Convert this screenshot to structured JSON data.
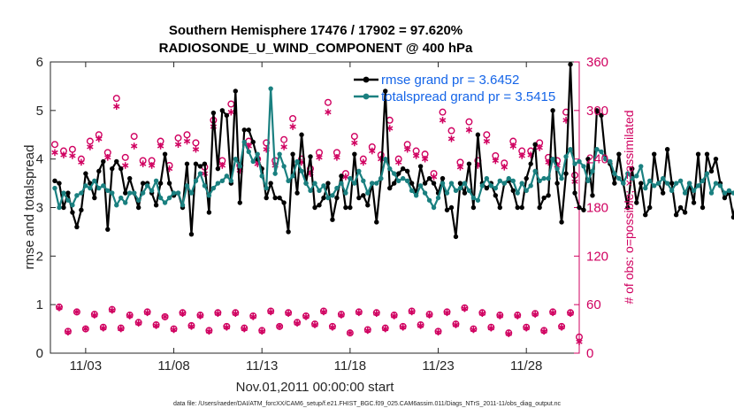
{
  "chart_data": {
    "type": "line",
    "title_line1": "Southern Hemisphere 17476 / 17902 = 97.620%",
    "title_line2": "RADIOSONDE_U_WIND_COMPONENT @ 400 hPa",
    "xlabel": "Nov.01,2011 00:00:00 start",
    "ylabel_left": "rmse and totalspread",
    "ylabel_right": "# of obs: o=possible; ×=assimilated",
    "xlim": [
      1,
      31
    ],
    "ylim_left": [
      0,
      6
    ],
    "ylim_right": [
      0,
      360
    ],
    "x_ticks": [
      3,
      8,
      13,
      18,
      23,
      28
    ],
    "x_tick_labels": [
      "11/03",
      "11/08",
      "11/13",
      "11/18",
      "11/23",
      "11/28"
    ],
    "y_left_ticks": [
      "0",
      "1",
      "2",
      "3",
      "4",
      "5",
      "6"
    ],
    "y_right_ticks": [
      "0",
      "60",
      "120",
      "180",
      "240",
      "300",
      "360"
    ],
    "x_start": 1.25,
    "x_step": 0.25,
    "series": [
      {
        "name": "rmse grand pr = 3.6452",
        "color": "#000000",
        "values": [
          3.55,
          3.5,
          3.0,
          3.3,
          2.9,
          2.6,
          2.95,
          3.7,
          3.5,
          3.2,
          3.75,
          3.95,
          2.55,
          3.8,
          3.95,
          3.8,
          3.3,
          3.6,
          3.3,
          3.0,
          3.5,
          3.5,
          3.3,
          3.05,
          3.5,
          4.1,
          3.5,
          3.25,
          3.3,
          3.0,
          3.9,
          2.45,
          3.9,
          3.85,
          3.9,
          2.9,
          4.95,
          3.8,
          5.0,
          4.9,
          3.5,
          5.4,
          3.1,
          4.6,
          4.6,
          4.35,
          4.0,
          3.8,
          3.2,
          3.5,
          3.2,
          3.2,
          3.1,
          2.5,
          4.1,
          3.3,
          4.5,
          3.5,
          4.05,
          3.0,
          3.05,
          3.2,
          3.5,
          2.75,
          3.2,
          3.65,
          3.0,
          3.0,
          4.1,
          3.2,
          3.25,
          3.05,
          3.5,
          2.7,
          3.6,
          5.4,
          3.4,
          3.5,
          3.7,
          3.8,
          3.75,
          3.5,
          3.3,
          3.85,
          3.5,
          3.6,
          3.5,
          3.3,
          3.6,
          2.95,
          3.0,
          2.4,
          3.5,
          3.3,
          3.9,
          3.0,
          4.5,
          3.5,
          3.4,
          3.5,
          3.25,
          3.0,
          3.5,
          3.55,
          3.35,
          3.0,
          3.0,
          3.6,
          3.9,
          4.3,
          3.0,
          3.2,
          3.25,
          5.0,
          3.5,
          2.7,
          3.7,
          5.95,
          3.3,
          3.0,
          2.95,
          4.0,
          3.25,
          5.0,
          4.9,
          4.0,
          3.9,
          3.5,
          4.1,
          3.5,
          3.0,
          3.8,
          3.1,
          3.5,
          2.85,
          3.0,
          4.1,
          3.5,
          3.3,
          4.2,
          3.5,
          2.85,
          3.0,
          2.9,
          3.5,
          3.1,
          4.1,
          3.0,
          4.1,
          3.75,
          4.0,
          3.5,
          3.2,
          3.3,
          2.8,
          3.4,
          3.5,
          3.0,
          3.3,
          4.0,
          4.2,
          3.5,
          4.2,
          3.0,
          3.05,
          2.55,
          3.5,
          2.8,
          3.5,
          3.2,
          3.1,
          4.5,
          3.2,
          4.6,
          3.2,
          2.8,
          3.4,
          2.55
        ],
        "rows": []
      },
      {
        "name": "totalspread grand pr = 3.5415",
        "color": "#1a8080",
        "values": [
          3.4,
          3.0,
          3.3,
          3.15,
          3.05,
          3.25,
          3.3,
          3.45,
          3.4,
          3.55,
          3.4,
          3.45,
          3.35,
          3.3,
          3.05,
          3.2,
          3.1,
          3.3,
          3.3,
          3.15,
          3.3,
          3.45,
          3.35,
          3.55,
          3.2,
          3.1,
          3.2,
          3.3,
          3.3,
          3.05,
          3.45,
          3.3,
          3.55,
          3.7,
          3.45,
          3.25,
          3.4,
          3.5,
          3.55,
          3.65,
          3.55,
          4.0,
          3.85,
          4.35,
          4.15,
          3.95,
          4.1,
          3.65,
          3.4,
          5.45,
          3.7,
          4.1,
          3.85,
          3.55,
          3.65,
          3.95,
          3.75,
          3.5,
          3.35,
          3.5,
          3.35,
          3.45,
          3.2,
          3.25,
          3.4,
          3.5,
          3.3,
          3.6,
          3.5,
          3.75,
          3.55,
          3.3,
          3.5,
          3.5,
          3.6,
          4.0,
          3.8,
          3.7,
          3.55,
          3.6,
          3.55,
          3.35,
          3.25,
          3.45,
          3.3,
          3.15,
          3.0,
          3.2,
          3.5,
          3.3,
          3.5,
          3.35,
          3.4,
          3.5,
          3.35,
          3.2,
          3.15,
          3.45,
          3.6,
          3.45,
          3.4,
          3.55,
          3.5,
          3.6,
          3.55,
          3.3,
          3.5,
          3.35,
          3.45,
          3.75,
          3.55,
          3.6,
          3.6,
          4.0,
          3.8,
          3.6,
          4.05,
          4.2,
          3.9,
          3.95,
          3.85,
          3.55,
          3.75,
          4.2,
          4.15,
          4.0,
          3.95,
          3.7,
          3.6,
          3.5,
          3.7,
          3.6,
          3.65,
          3.85,
          3.4,
          3.55,
          3.45,
          3.5,
          3.6,
          3.5,
          3.35,
          3.5,
          3.55,
          3.3,
          3.5,
          3.35,
          3.45,
          3.55,
          3.7,
          3.3,
          3.5,
          3.45,
          3.3,
          3.35,
          3.3,
          3.3,
          3.35,
          3.3,
          3.4,
          3.3,
          3.35,
          3.2,
          3.15,
          3.25,
          3.3,
          3.4,
          3.5,
          3.4,
          3.55,
          3.45,
          3.5,
          3.35,
          3.5,
          3.4,
          3.5,
          3.45,
          4.0,
          5.0
        ],
        "rows": []
      },
      {
        "name": "possible",
        "color": "#d00060",
        "marker": "circle",
        "axis": "right",
        "x": [
          1.25,
          1.75,
          2.25,
          2.75,
          3.25,
          3.75,
          4.25,
          4.75,
          5.25,
          5.75,
          6.25,
          6.75,
          7.25,
          7.75,
          8.25,
          8.75,
          9.25,
          9.75,
          10.25,
          10.75,
          11.25,
          11.75,
          12.25,
          12.75,
          13.25,
          13.75,
          14.25,
          14.75,
          15.25,
          15.75,
          16.25,
          16.75,
          17.25,
          17.75,
          18.25,
          18.75,
          19.25,
          19.75,
          20.25,
          20.75,
          21.25,
          21.75,
          22.25,
          22.75,
          23.25,
          23.75,
          24.25,
          24.75,
          25.25,
          25.75,
          26.25,
          26.75,
          27.25,
          27.75,
          28.25,
          28.75,
          29.25,
          29.75,
          30.25,
          30.75,
          1.5,
          2,
          2.5,
          3,
          3.5,
          4,
          4.5,
          5,
          5.5,
          6,
          6.5,
          7,
          7.5,
          8,
          8.5,
          9,
          9.5,
          10,
          10.5,
          11,
          11.5,
          12,
          12.5,
          13,
          13.5,
          14,
          14.5,
          15,
          15.5,
          16,
          16.5,
          17,
          17.5,
          18,
          18.5,
          19,
          19.5,
          20,
          20.5,
          21,
          21.5,
          22,
          22.5,
          23,
          23.5,
          24,
          24.5,
          25,
          25.5,
          26,
          26.5,
          27,
          27.5,
          28,
          28.5,
          29,
          29.5,
          30,
          30.5,
          31
        ],
        "values": [
          258,
          250,
          252,
          240,
          262,
          270,
          248,
          315,
          242,
          268,
          238,
          238,
          262,
          232,
          266,
          270,
          260,
          230,
          288,
          238,
          308,
          232,
          262,
          240,
          260,
          238,
          264,
          290,
          240,
          228,
          248,
          310,
          248,
          222,
          268,
          240,
          255,
          245,
          288,
          240,
          258,
          250,
          246,
          222,
          298,
          275,
          236,
          286,
          238,
          270,
          244,
          235,
          262,
          250,
          250,
          260,
          242,
          238,
          298,
          220,
          57,
          27,
          51,
          30,
          48,
          32,
          54,
          31,
          47,
          38,
          51,
          35,
          45,
          30,
          50,
          34,
          47,
          28,
          50,
          33,
          50,
          31,
          46,
          28,
          52,
          33,
          50,
          38,
          46,
          36,
          52,
          33,
          48,
          25,
          51,
          29,
          50,
          31,
          47,
          33,
          52,
          35,
          48,
          27,
          51,
          36,
          56,
          30,
          50,
          32,
          47,
          25,
          47,
          32,
          49,
          28,
          51,
          33,
          50,
          20
        ],
        "rows": []
      },
      {
        "name": "assimilated",
        "color": "#d00060",
        "marker": "asterisk",
        "axis": "right",
        "x": [
          1.25,
          1.75,
          2.25,
          2.75,
          3.25,
          3.75,
          4.25,
          4.75,
          5.25,
          5.75,
          6.25,
          6.75,
          7.25,
          7.75,
          8.25,
          8.75,
          9.25,
          9.75,
          10.25,
          10.75,
          11.25,
          11.75,
          12.25,
          12.75,
          13.25,
          13.75,
          14.25,
          14.75,
          15.25,
          15.75,
          16.25,
          16.75,
          17.25,
          17.75,
          18.25,
          18.75,
          19.25,
          19.75,
          20.25,
          20.75,
          21.25,
          21.75,
          22.25,
          22.75,
          23.25,
          23.75,
          24.25,
          24.75,
          25.25,
          25.75,
          26.25,
          26.75,
          27.25,
          27.75,
          28.25,
          28.75,
          29.25,
          29.75,
          30.25,
          30.75,
          1.5,
          2,
          2.5,
          3,
          3.5,
          4,
          4.5,
          5,
          5.5,
          6,
          6.5,
          7,
          7.5,
          8,
          8.5,
          9,
          9.5,
          10,
          10.5,
          11,
          11.5,
          12,
          12.5,
          13,
          13.5,
          14,
          14.5,
          15,
          15.5,
          16,
          16.5,
          17,
          17.5,
          18,
          18.5,
          19,
          19.5,
          20,
          20.5,
          21,
          21.5,
          22,
          22.5,
          23,
          23.5,
          24,
          24.5,
          25,
          25.5,
          26,
          26.5,
          27,
          27.5,
          28,
          28.5,
          29,
          29.5,
          30,
          30.5,
          31
        ],
        "values": [
          248,
          245,
          244,
          236,
          255,
          265,
          242,
          305,
          232,
          256,
          234,
          232,
          256,
          228,
          258,
          262,
          252,
          222,
          280,
          232,
          298,
          226,
          256,
          234,
          252,
          232,
          255,
          280,
          236,
          222,
          242,
          298,
          242,
          218,
          260,
          236,
          250,
          240,
          278,
          236,
          252,
          244,
          240,
          218,
          288,
          265,
          230,
          276,
          232,
          262,
          238,
          230,
          256,
          244,
          245,
          254,
          236,
          232,
          288,
          212,
          56,
          26,
          51,
          30,
          47,
          31,
          53,
          30,
          46,
          37,
          50,
          34,
          45,
          29,
          49,
          33,
          46,
          27,
          49,
          32,
          49,
          30,
          45,
          27,
          51,
          33,
          49,
          37,
          45,
          35,
          51,
          32,
          47,
          25,
          50,
          28,
          49,
          30,
          46,
          32,
          51,
          34,
          47,
          26,
          50,
          35,
          55,
          29,
          49,
          31,
          46,
          24,
          46,
          31,
          48,
          27,
          50,
          32,
          49,
          14
        ],
        "rows": []
      }
    ],
    "legend_position": "top-right",
    "footnote": "data file: /Users/raeder/DAI/ATM_forcXX/CAM6_setup/f.e21.FHIST_BGC.f09_025.CAM6assim.011/Diags_NTrS_2011-11/obs_diag_output.nc"
  }
}
